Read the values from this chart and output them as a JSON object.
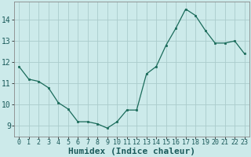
{
  "x": [
    0,
    1,
    2,
    3,
    4,
    5,
    6,
    7,
    8,
    9,
    10,
    11,
    12,
    13,
    14,
    15,
    16,
    17,
    18,
    19,
    20,
    21,
    22,
    23
  ],
  "y": [
    11.8,
    11.2,
    11.1,
    10.8,
    10.1,
    9.8,
    9.2,
    9.2,
    9.1,
    8.9,
    9.2,
    9.75,
    9.75,
    11.45,
    11.8,
    12.8,
    13.6,
    14.5,
    14.2,
    13.5,
    12.9,
    12.9,
    13.0,
    12.4
  ],
  "xlabel": "Humidex (Indice chaleur)",
  "ylabel": "",
  "xlim": [
    -0.5,
    23.5
  ],
  "ylim": [
    8.5,
    14.85
  ],
  "yticks": [
    9,
    10,
    11,
    12,
    13,
    14
  ],
  "xticks": [
    0,
    1,
    2,
    3,
    4,
    5,
    6,
    7,
    8,
    9,
    10,
    11,
    12,
    13,
    14,
    15,
    16,
    17,
    18,
    19,
    20,
    21,
    22,
    23
  ],
  "line_color": "#1a6b5a",
  "marker_color": "#1a6b5a",
  "bg_color": "#cceaea",
  "grid_color": "#aacccc",
  "label_fontsize": 7,
  "tick_fontsize": 6
}
